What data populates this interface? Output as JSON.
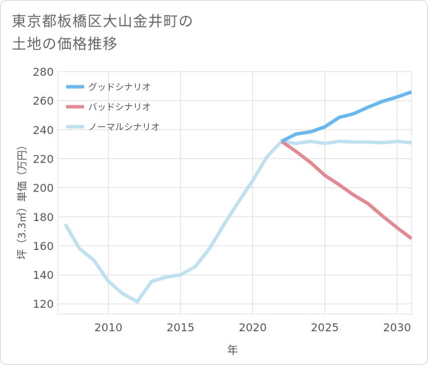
{
  "title": {
    "line1": "東京都板橋区大山金井町の",
    "line2": "土地の価格推移"
  },
  "colors": {
    "good": "#6ab7ee",
    "bad": "#e08a93",
    "normal": "#bfe0ef",
    "grid": "#dddddd",
    "axis_text": "#555555"
  },
  "chart_data": {
    "type": "line",
    "xlabel": "年",
    "ylabel": "坪（3.3㎡）単価（万円）",
    "xlim": [
      2006.5,
      2031
    ],
    "ylim": [
      113,
      280
    ],
    "x_ticks": [
      2010,
      2015,
      2020,
      2025,
      2030
    ],
    "y_ticks": [
      120,
      140,
      160,
      180,
      200,
      220,
      240,
      260,
      280
    ],
    "grid": true,
    "legend_position": "top-left",
    "series": [
      {
        "name": "グッドシナリオ",
        "key": "good",
        "x": [
          2022,
          2023,
          2024,
          2025,
          2026,
          2027,
          2028,
          2029,
          2030,
          2031
        ],
        "y": [
          232,
          237,
          238.5,
          242,
          248.5,
          251,
          255.5,
          259.5,
          262.5,
          266
        ]
      },
      {
        "name": "バッドシナリオ",
        "key": "bad",
        "x": [
          2022,
          2023,
          2024,
          2025,
          2026,
          2027,
          2028,
          2029,
          2030,
          2031
        ],
        "y": [
          232,
          225,
          217.5,
          208.5,
          202,
          195,
          189,
          180.5,
          172.5,
          165
        ]
      },
      {
        "name": "ノーマルシナリオ",
        "key": "normal",
        "x": [
          2007,
          2008,
          2009,
          2010,
          2011,
          2012,
          2013,
          2014,
          2015,
          2016,
          2017,
          2018,
          2019,
          2020,
          2021,
          2022,
          2023,
          2024,
          2025,
          2026,
          2027,
          2028,
          2029,
          2030,
          2031
        ],
        "y": [
          175,
          158,
          150,
          135.5,
          127,
          121.5,
          135.5,
          138.5,
          140,
          145.5,
          158,
          174.5,
          190,
          205,
          221.5,
          232,
          230.5,
          232,
          230.5,
          232,
          231.5,
          231.5,
          231,
          232,
          231
        ]
      }
    ]
  }
}
